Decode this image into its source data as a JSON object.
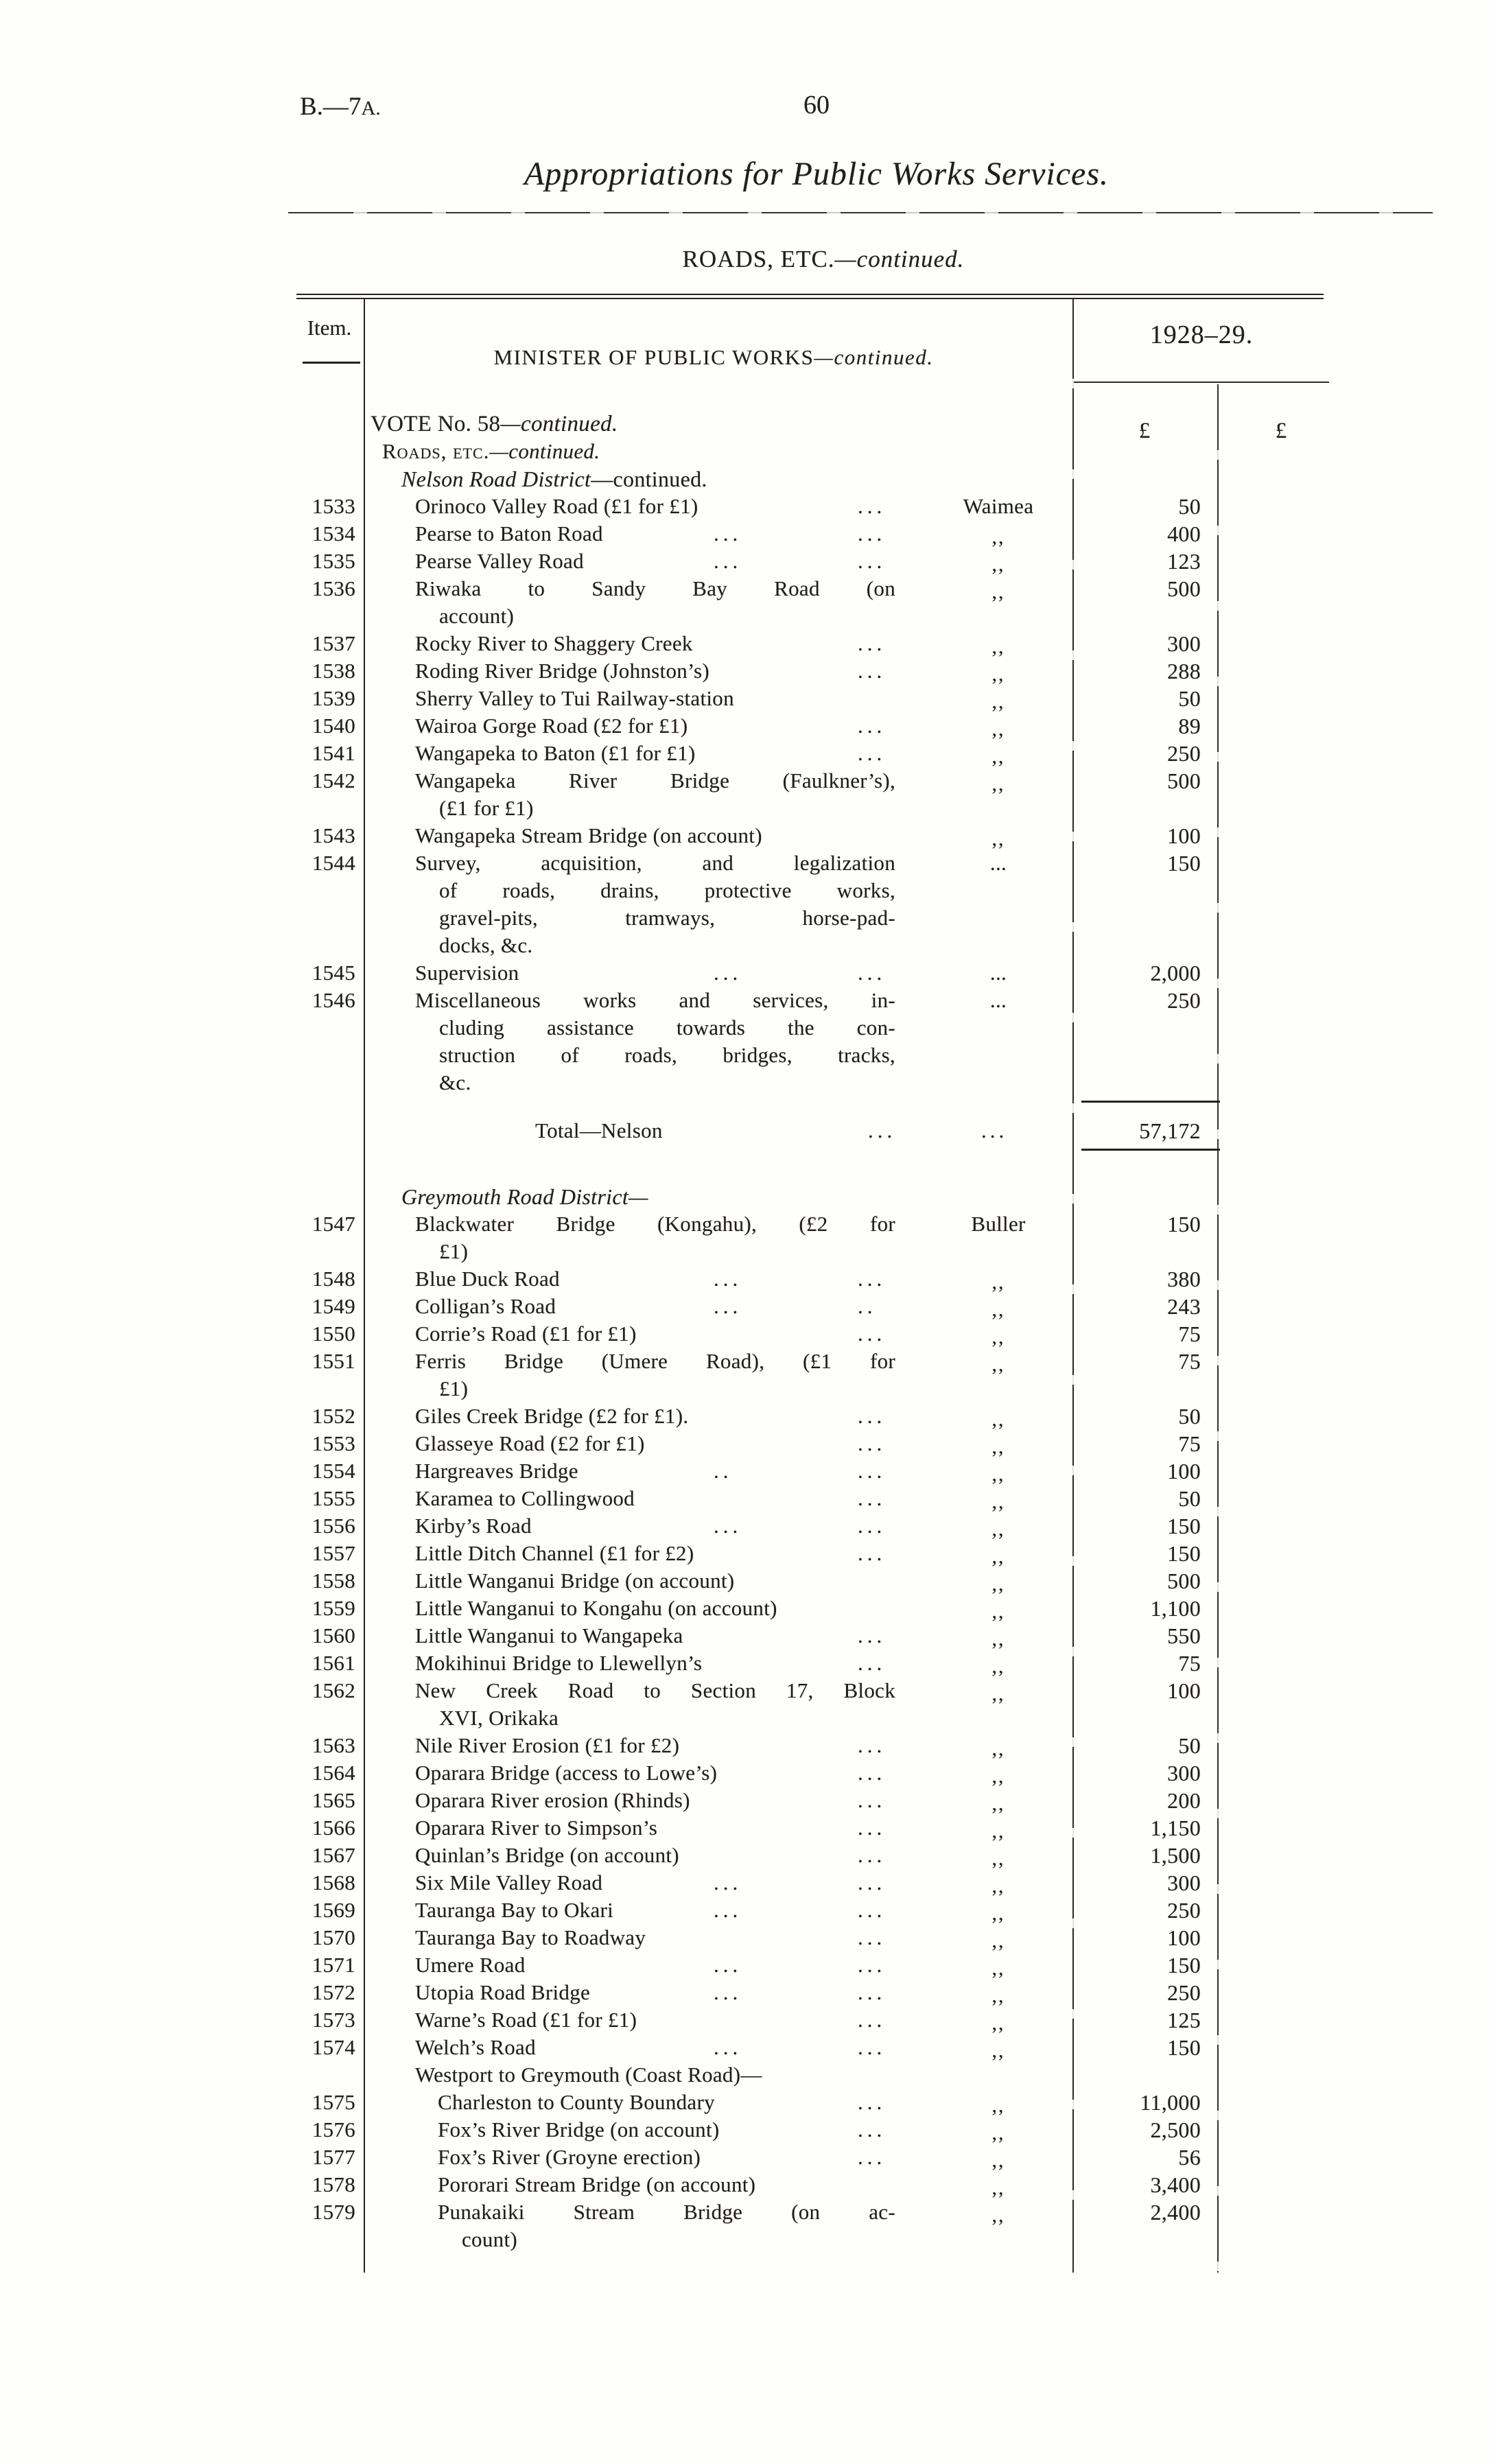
{
  "page": {
    "doc_ref_main": "B.—7",
    "doc_ref_suffix": "A.",
    "page_number": "60",
    "title": "Appropriations for Public Works Services.",
    "heading_main": "ROADS, ETC.",
    "heading_cont": "—continued.",
    "ink_color": "#211e19",
    "paper_color": "#fefefc"
  },
  "table": {
    "item_header": "Item.",
    "minister_main": "MINISTER OF PUBLIC WORKS",
    "minister_cont": "—continued.",
    "year_header": "1928–29.",
    "pound_1": "£",
    "pound_2": "£",
    "rows": [
      {
        "k": "h",
        "cls": "vote",
        "main": "VOTE No. 58",
        "cont": "—continued."
      },
      {
        "k": "h",
        "cls": "roads",
        "main": "Roads, etc.",
        "cont": "—continued."
      },
      {
        "k": "dist",
        "it": "Nelson Road District",
        "ro": "—continued."
      },
      {
        "k": "r",
        "n": "1533",
        "d": [
          "Orinoco Valley Road (£1 for £1)"
        ],
        "d2": "...",
        "loc": "Waimea",
        "a": "50"
      },
      {
        "k": "r",
        "n": "1534",
        "d": [
          "Pearse to Baton Road"
        ],
        "d1": "...",
        "d2": "...",
        "loc": ",,",
        "a": "400"
      },
      {
        "k": "r",
        "n": "1535",
        "d": [
          "Pearse Valley Road"
        ],
        "d1": "...",
        "d2": "...",
        "loc": ",,",
        "a": "123"
      },
      {
        "k": "r",
        "n": "1536",
        "d": [
          "Riwaka to Sandy Bay Road (on",
          "account)"
        ],
        "loc": ",,",
        "a": "500"
      },
      {
        "k": "r",
        "n": "1537",
        "d": [
          "Rocky River to Shaggery Creek"
        ],
        "d2": "...",
        "loc": ",,",
        "a": "300"
      },
      {
        "k": "r",
        "n": "1538",
        "d": [
          "Roding River Bridge (Johnston’s)"
        ],
        "d2": "...",
        "loc": ",,",
        "a": "288"
      },
      {
        "k": "r",
        "n": "1539",
        "d": [
          "Sherry Valley to Tui Railway-station"
        ],
        "loc": ",,",
        "a": "50"
      },
      {
        "k": "r",
        "n": "1540",
        "d": [
          "Wairoa Gorge Road (£2 for £1)"
        ],
        "d2": "...",
        "loc": ",,",
        "a": "89"
      },
      {
        "k": "r",
        "n": "1541",
        "d": [
          "Wangapeka to Baton (£1 for £1)"
        ],
        "d2": "...",
        "loc": ",,",
        "a": "250"
      },
      {
        "k": "r",
        "n": "1542",
        "d": [
          "Wangapeka River Bridge (Faulkner’s),",
          "(£1 for £1)"
        ],
        "loc": ",,",
        "a": "500"
      },
      {
        "k": "r",
        "n": "1543",
        "d": [
          "Wangapeka Stream Bridge (on account)"
        ],
        "loc": ",,",
        "a": "100"
      },
      {
        "k": "r",
        "n": "1544",
        "d": [
          "Survey, acquisition, and legalization",
          "of roads, drains, protective works,",
          "gravel-pits, tramways, horse-pad-",
          "docks, &c."
        ],
        "loc": "...",
        "a": "150"
      },
      {
        "k": "r",
        "n": "1545",
        "d": [
          "Supervision"
        ],
        "d1": "...",
        "d2": "...",
        "loc": "...",
        "a": "2,000"
      },
      {
        "k": "r",
        "n": "1546",
        "d": [
          "Miscellaneous works and services, in-",
          "cluding assistance towards the con-",
          "struction of roads, bridges, tracks,",
          "&c."
        ],
        "loc": "...",
        "a": "250"
      },
      {
        "k": "total",
        "t": "Total—Nelson",
        "d1": "...",
        "d2": "...",
        "a": "57,172"
      },
      {
        "k": "dist",
        "it": "Greymouth Road District—",
        "ro": ""
      },
      {
        "k": "r",
        "n": "1547",
        "d": [
          "Blackwater Bridge (Kongahu), (£2 for",
          "£1)"
        ],
        "loc": "Buller",
        "a": "150"
      },
      {
        "k": "r",
        "n": "1548",
        "d": [
          "Blue Duck Road"
        ],
        "d1": "...",
        "d2": "...",
        "loc": ",,",
        "a": "380"
      },
      {
        "k": "r",
        "n": "1549",
        "d": [
          "Colligan’s Road"
        ],
        "d1": "...",
        "d2": "..",
        "loc": ",,",
        "a": "243"
      },
      {
        "k": "r",
        "n": "1550",
        "d": [
          "Corrie’s Road (£1 for £1)"
        ],
        "d2": "...",
        "loc": ",,",
        "a": "75"
      },
      {
        "k": "r",
        "n": "1551",
        "d": [
          "Ferris Bridge (Umere Road), (£1 for",
          "£1)"
        ],
        "loc": ",,",
        "a": "75"
      },
      {
        "k": "r",
        "n": "1552",
        "d": [
          "Giles Creek Bridge (£2 for £1)."
        ],
        "d2": "...",
        "loc": ",,",
        "a": "50"
      },
      {
        "k": "r",
        "n": "1553",
        "d": [
          "Glasseye Road (£2 for £1)"
        ],
        "d2": "...",
        "loc": ",,",
        "a": "75"
      },
      {
        "k": "r",
        "n": "1554",
        "d": [
          "Hargreaves Bridge"
        ],
        "d1": "..",
        "d2": "...",
        "loc": ",,",
        "a": "100"
      },
      {
        "k": "r",
        "n": "1555",
        "d": [
          "Karamea to Collingwood"
        ],
        "d2": "...",
        "loc": ",,",
        "a": "50"
      },
      {
        "k": "r",
        "n": "1556",
        "d": [
          "Kirby’s Road"
        ],
        "d1": "...",
        "d2": "...",
        "loc": ",,",
        "a": "150"
      },
      {
        "k": "r",
        "n": "1557",
        "d": [
          "Little Ditch Channel (£1 for £2)"
        ],
        "d2": "...",
        "loc": ",,",
        "a": "150"
      },
      {
        "k": "r",
        "n": "1558",
        "d": [
          "Little Wanganui Bridge (on account)"
        ],
        "loc": ",,",
        "a": "500"
      },
      {
        "k": "r",
        "n": "1559",
        "d": [
          "Little Wanganui to Kongahu (on account)"
        ],
        "loc": ",,",
        "a": "1,100"
      },
      {
        "k": "r",
        "n": "1560",
        "d": [
          "Little Wanganui to Wangapeka"
        ],
        "d2": "...",
        "loc": ",,",
        "a": "550"
      },
      {
        "k": "r",
        "n": "1561",
        "d": [
          "Mokihinui Bridge to Llewellyn’s"
        ],
        "d2": "...",
        "loc": ",,",
        "a": "75"
      },
      {
        "k": "r",
        "n": "1562",
        "d": [
          "New Creek Road to Section 17, Block",
          "XVI, Orikaka"
        ],
        "loc": ",,",
        "a": "100"
      },
      {
        "k": "r",
        "n": "1563",
        "d": [
          "Nile River Erosion (£1 for £2)"
        ],
        "d2": "...",
        "loc": ",,",
        "a": "50"
      },
      {
        "k": "r",
        "n": "1564",
        "d": [
          "Oparara Bridge (access to Lowe’s)"
        ],
        "d2": "...",
        "loc": ",,",
        "a": "300"
      },
      {
        "k": "r",
        "n": "1565",
        "d": [
          "Oparara River erosion (Rhinds)"
        ],
        "d2": "...",
        "loc": ",,",
        "a": "200"
      },
      {
        "k": "r",
        "n": "1566",
        "d": [
          "Oparara River to Simpson’s"
        ],
        "d2": "...",
        "loc": ",,",
        "a": "1,150"
      },
      {
        "k": "r",
        "n": "1567",
        "d": [
          "Quinlan’s Bridge (on account)"
        ],
        "d2": "...",
        "loc": ",,",
        "a": "1,500"
      },
      {
        "k": "r",
        "n": "1568",
        "d": [
          "Six Mile Valley Road"
        ],
        "d1": "...",
        "d2": "...",
        "loc": ",,",
        "a": "300"
      },
      {
        "k": "r",
        "n": "1569",
        "d": [
          "Tauranga Bay to Okari"
        ],
        "d1": "...",
        "d2": "...",
        "loc": ",,",
        "a": "250"
      },
      {
        "k": "r",
        "n": "1570",
        "d": [
          "Tauranga Bay to Roadway"
        ],
        "d2": "...",
        "loc": ",,",
        "a": "100"
      },
      {
        "k": "r",
        "n": "1571",
        "d": [
          "Umere Road"
        ],
        "d1": "...",
        "d2": "...",
        "loc": ",,",
        "a": "150"
      },
      {
        "k": "r",
        "n": "1572",
        "d": [
          "Utopia Road Bridge"
        ],
        "d1": "...",
        "d2": "...",
        "loc": ",,",
        "a": "250"
      },
      {
        "k": "r",
        "n": "1573",
        "d": [
          "Warne’s Road (£1 for £1)"
        ],
        "d2": "...",
        "loc": ",,",
        "a": "125"
      },
      {
        "k": "r",
        "n": "1574",
        "d": [
          "Welch’s Road"
        ],
        "d1": "...",
        "d2": "...",
        "loc": ",,",
        "a": "150"
      },
      {
        "k": "grp",
        "t": "Westport to Greymouth (Coast Road)—"
      },
      {
        "k": "r",
        "n": "1575",
        "ind": 1,
        "d": [
          "Charleston to County Boundary"
        ],
        "d2": "...",
        "loc": ",,",
        "a": "11,000"
      },
      {
        "k": "r",
        "n": "1576",
        "ind": 1,
        "d": [
          "Fox’s River Bridge (on account)"
        ],
        "d2": "...",
        "loc": ",,",
        "a": "2,500"
      },
      {
        "k": "r",
        "n": "1577",
        "ind": 1,
        "d": [
          "Fox’s River (Groyne erection)"
        ],
        "d2": "...",
        "loc": ",,",
        "a": "56"
      },
      {
        "k": "r",
        "n": "1578",
        "ind": 1,
        "d": [
          "Pororari Stream Bridge (on account)"
        ],
        "loc": ",,",
        "a": "3,400"
      },
      {
        "k": "r",
        "n": "1579",
        "ind": 1,
        "d": [
          "Punakaiki Stream Bridge (on ac-",
          "count)"
        ],
        "loc": ",,",
        "a": "2,400"
      }
    ]
  }
}
